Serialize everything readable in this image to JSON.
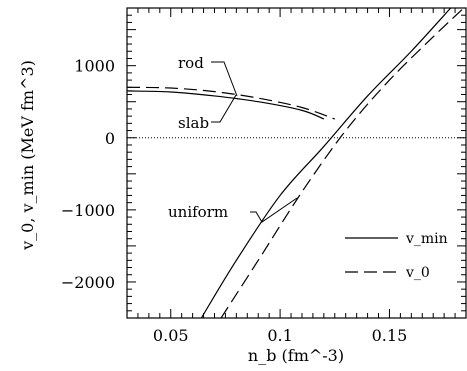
{
  "chart_data": {
    "type": "line",
    "xlabel": "n_b (fm^-3)",
    "ylabel": "v_0, v_min (MeV fm^3)",
    "xlim": [
      0.03,
      0.185
    ],
    "ylim": [
      -2500,
      1800
    ],
    "x_ticks": [
      {
        "value": 0.05,
        "label": "0.05"
      },
      {
        "value": 0.1,
        "label": "0.1"
      },
      {
        "value": 0.15,
        "label": "0.15"
      }
    ],
    "y_ticks": [
      {
        "value": 1000,
        "label": "1000"
      },
      {
        "value": 0,
        "label": "0"
      },
      {
        "value": -1000,
        "label": "−1000"
      },
      {
        "value": -2000,
        "label": "−2000"
      }
    ],
    "reference_line": {
      "y": 0,
      "style": "dotted"
    },
    "legend": {
      "position": "bottom-right",
      "entries": [
        {
          "label": "v_min",
          "style": "solid"
        },
        {
          "label": "v_0",
          "style": "dashed"
        }
      ]
    },
    "annotations": [
      {
        "text": "rod"
      },
      {
        "text": "slab"
      },
      {
        "text": "uniform"
      }
    ],
    "series": [
      {
        "style": "solid",
        "points": [
          [
            0.03,
            650
          ],
          [
            0.05,
            635
          ],
          [
            0.07,
            580
          ],
          [
            0.09,
            500
          ],
          [
            0.11,
            380
          ],
          [
            0.12,
            260
          ]
        ]
      },
      {
        "style": "dashed",
        "points": [
          [
            0.03,
            700
          ],
          [
            0.05,
            690
          ],
          [
            0.07,
            640
          ],
          [
            0.09,
            550
          ],
          [
            0.11,
            420
          ],
          [
            0.125,
            260
          ]
        ]
      },
      {
        "style": "solid",
        "points": [
          [
            0.064,
            -2500
          ],
          [
            0.08,
            -1700
          ],
          [
            0.1,
            -800
          ],
          [
            0.12,
            -120
          ],
          [
            0.14,
            580
          ],
          [
            0.16,
            1200
          ],
          [
            0.178,
            1800
          ]
        ]
      },
      {
        "style": "dashed",
        "points": [
          [
            0.073,
            -2500
          ],
          [
            0.09,
            -1700
          ],
          [
            0.11,
            -750
          ],
          [
            0.13,
            100
          ],
          [
            0.15,
            800
          ],
          [
            0.17,
            1400
          ],
          [
            0.184,
            1800
          ]
        ]
      }
    ]
  }
}
